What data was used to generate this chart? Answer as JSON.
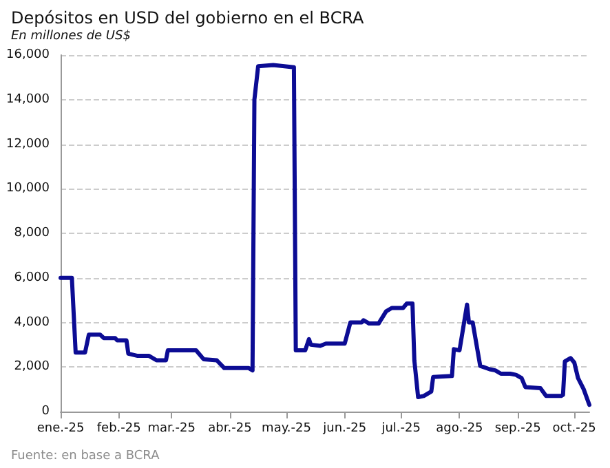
{
  "chart_data": {
    "type": "line",
    "title": "Depósitos en USD del gobierno en el BCRA",
    "subtitle": "En millones de US$",
    "annotations": [
      "Fuente: en base a BCRA"
    ],
    "color": "#0c0c94",
    "grid": "y",
    "marker": "none",
    "line_style": "solid",
    "x": [
      "2025-01-01",
      "2025-01-07",
      "2025-01-09",
      "2025-01-14",
      "2025-01-16",
      "2025-01-22",
      "2025-01-24",
      "2025-01-30",
      "2025-01-31",
      "2025-02-05",
      "2025-02-06",
      "2025-02-11",
      "2025-02-17",
      "2025-02-21",
      "2025-02-26",
      "2025-02-27",
      "2025-03-14",
      "2025-03-18",
      "2025-03-25",
      "2025-03-29",
      "2025-04-11",
      "2025-04-13",
      "2025-04-14",
      "2025-04-16",
      "2025-04-24",
      "2025-05-05",
      "2025-05-06",
      "2025-05-11",
      "2025-05-13",
      "2025-05-14",
      "2025-05-19",
      "2025-05-22",
      "2025-06-01",
      "2025-06-04",
      "2025-06-10",
      "2025-06-11",
      "2025-06-14",
      "2025-06-19",
      "2025-06-23",
      "2025-06-26",
      "2025-07-02",
      "2025-07-04",
      "2025-07-07",
      "2025-07-08",
      "2025-07-10",
      "2025-07-13",
      "2025-07-17",
      "2025-07-18",
      "2025-07-28",
      "2025-07-29",
      "2025-08-01",
      "2025-08-05",
      "2025-08-06",
      "2025-08-08",
      "2025-08-12",
      "2025-08-17",
      "2025-08-20",
      "2025-08-23",
      "2025-08-28",
      "2025-08-31",
      "2025-09-03",
      "2025-09-05",
      "2025-09-13",
      "2025-09-16",
      "2025-09-24",
      "2025-09-25",
      "2025-09-26",
      "2025-09-29",
      "2025-10-01",
      "2025-10-03",
      "2025-10-06",
      "2025-10-09"
    ],
    "values": [
      6000,
      6000,
      2650,
      2650,
      3450,
      3450,
      3300,
      3300,
      3200,
      3200,
      2600,
      2500,
      2500,
      2300,
      2300,
      2750,
      2750,
      2350,
      2300,
      1950,
      1950,
      1850,
      14000,
      15500,
      15550,
      15450,
      2750,
      2750,
      3250,
      3000,
      2950,
      3050,
      3050,
      4000,
      4000,
      4100,
      3950,
      3950,
      4500,
      4650,
      4650,
      4850,
      4850,
      2300,
      650,
      700,
      900,
      1550,
      1600,
      2800,
      2750,
      4800,
      4000,
      4000,
      2050,
      1900,
      1850,
      1700,
      1700,
      1650,
      1500,
      1100,
      1050,
      700,
      700,
      750,
      2250,
      2400,
      2200,
      1500,
      1000,
      300
    ],
    "xlim": [
      "2025-01-01",
      "2025-10-09"
    ],
    "xticks": [
      {
        "value": "2025-01-01",
        "label": "ene.-25"
      },
      {
        "value": "2025-02-01",
        "label": "feb.-25"
      },
      {
        "value": "2025-03-01",
        "label": "mar.-25"
      },
      {
        "value": "2025-04-01",
        "label": "abr.-25"
      },
      {
        "value": "2025-05-01",
        "label": "may.-25"
      },
      {
        "value": "2025-06-01",
        "label": "jun.-25"
      },
      {
        "value": "2025-07-01",
        "label": "jul.-25"
      },
      {
        "value": "2025-08-01",
        "label": "ago.-25"
      },
      {
        "value": "2025-09-01",
        "label": "sep.-25"
      },
      {
        "value": "2025-10-01",
        "label": "oct.-25"
      }
    ],
    "ylim": [
      0,
      16000
    ],
    "yticks": [
      0,
      {
        "value": 2000,
        "label": "2,000"
      },
      {
        "value": 4000,
        "label": "4,000"
      },
      {
        "value": 6000,
        "label": "6,000"
      },
      {
        "value": 8000,
        "label": "8,000"
      },
      {
        "value": 10000,
        "label": "10,000"
      },
      {
        "value": 12000,
        "label": "12,000"
      },
      {
        "value": 14000,
        "label": "14,000"
      },
      {
        "value": 16000,
        "label": "16,000"
      }
    ]
  }
}
